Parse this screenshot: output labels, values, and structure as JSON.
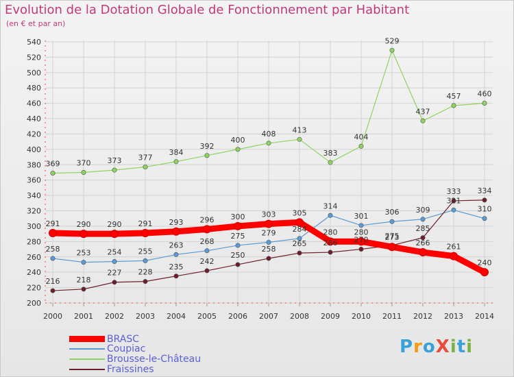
{
  "header": {
    "title": "Evolution de la Dotation Globale de Fonctionnement par Habitant",
    "subtitle": "(en € et par an)"
  },
  "logo": {
    "text": "ProXiti",
    "colors": [
      "#3aa0d8",
      "#f39c12",
      "#3aa0d8",
      "#e74c3c",
      "#7cb342",
      "#3aa0d8",
      "#7cb342"
    ]
  },
  "chart_data": {
    "type": "line",
    "x": [
      "2000",
      "2001",
      "2002",
      "2003",
      "2004",
      "2005",
      "2006",
      "2007",
      "2008",
      "2009",
      "2010",
      "2011",
      "2012",
      "2013",
      "2014"
    ],
    "ylim": [
      200,
      540
    ],
    "ytick_step": 20,
    "grid": true,
    "legend_position": "bottom-left",
    "series": [
      {
        "name": "BRASC",
        "color": "#ff0000",
        "values": [
          291,
          290,
          290,
          291,
          293,
          296,
          300,
          303,
          305,
          280,
          280,
          273,
          266,
          261,
          240
        ]
      },
      {
        "name": "Coupiac",
        "color": "#5b9bd5",
        "values": [
          258,
          253,
          254,
          255,
          263,
          268,
          275,
          279,
          284,
          314,
          301,
          306,
          309,
          321,
          310
        ]
      },
      {
        "name": "Brousse-le-Château",
        "color": "#8fd45e",
        "values": [
          369,
          370,
          373,
          377,
          384,
          392,
          400,
          408,
          413,
          383,
          404,
          529,
          437,
          457,
          460
        ]
      },
      {
        "name": "Fraissines",
        "color": "#6b1e2a",
        "values": [
          216,
          218,
          227,
          228,
          235,
          242,
          250,
          258,
          265,
          266,
          270,
          275,
          285,
          333,
          334
        ]
      }
    ]
  }
}
